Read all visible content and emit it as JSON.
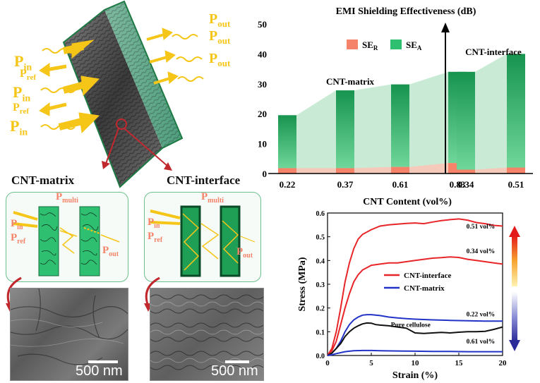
{
  "schematic": {
    "wave_labels": {
      "p_in": "P",
      "p_in_sub": "in",
      "p_ref": "P",
      "p_ref_sub": "ref",
      "p_out": "P",
      "p_out_sub": "out"
    },
    "label_matrix": "CNT-matrix",
    "label_interface": "CNT-interface"
  },
  "panels": {
    "matrix": {
      "p_multi": "P",
      "p_multi_sub": "multi",
      "p_in": "P",
      "p_in_sub": "in",
      "p_ref": "P",
      "p_ref_sub": "ref",
      "p_out": "P",
      "p_out_sub": "out"
    },
    "interface": {
      "p_multi": "P",
      "p_multi_sub": "multi",
      "p_in": "P",
      "p_in_sub": "in",
      "p_ref": "P",
      "p_ref_sub": "ref",
      "p_out": "P",
      "p_out_sub": "out"
    }
  },
  "sem": {
    "matrix_scale": "500 nm",
    "interface_scale": "500 nm"
  },
  "chart_data": [
    {
      "type": "bar",
      "title": "EMI Shielding Effectiveness (dB)",
      "xlabel": "CNT Content (vol%)",
      "ylim": [
        0,
        50
      ],
      "yticks": [
        0,
        10,
        20,
        30,
        40,
        50
      ],
      "legend": {
        "placement": "top",
        "entries": [
          {
            "name": "SE",
            "sub": "R",
            "color": "#f4836a"
          },
          {
            "name": "SE",
            "sub": "A",
            "color": "#2fbf71"
          }
        ]
      },
      "groups": [
        {
          "label": "CNT-matrix",
          "categories": [
            "0.22",
            "0.37",
            "0.61",
            "0.83"
          ],
          "se_total": [
            19.5,
            27.8,
            29.8,
            34.0
          ],
          "se_r": [
            1.8,
            1.8,
            2.2,
            3.5
          ]
        },
        {
          "label": "CNT-interface",
          "categories": [
            "0.34",
            "0.51"
          ],
          "se_total": [
            34.0,
            40.0
          ],
          "se_r": [
            1.3,
            2.0
          ]
        }
      ],
      "colors": {
        "se_r": "#f4836a",
        "se_a": "#2fbf71",
        "se_a_fill": "#bfe8cf",
        "se_r_fill": "#f9c7b8"
      }
    },
    {
      "type": "line",
      "xlabel": "Strain (%)",
      "ylabel": "Stress (MPa)",
      "xlim": [
        0,
        20
      ],
      "ylim": [
        0,
        0.6
      ],
      "xticks": [
        0,
        5,
        10,
        15,
        20
      ],
      "yticks": [
        0.0,
        0.1,
        0.2,
        0.3,
        0.4,
        0.5,
        0.6
      ],
      "legend": {
        "placement": "center",
        "entries": [
          {
            "name": "CNT-interface",
            "color": "#e8262a"
          },
          {
            "name": "CNT-matrix",
            "color": "#2233c8"
          }
        ]
      },
      "series": [
        {
          "name": "0.51 vol%",
          "color": "#e8262a",
          "x": [
            0,
            0.5,
            1,
            1.5,
            2,
            2.5,
            3,
            3.5,
            4,
            5,
            6,
            7,
            8,
            9,
            10,
            11,
            12,
            13,
            14,
            15,
            16,
            17,
            18,
            19,
            20
          ],
          "y": [
            0,
            0.03,
            0.1,
            0.2,
            0.31,
            0.39,
            0.45,
            0.49,
            0.51,
            0.53,
            0.545,
            0.55,
            0.553,
            0.556,
            0.558,
            0.555,
            0.562,
            0.568,
            0.572,
            0.575,
            0.57,
            0.56,
            0.555,
            0.548,
            0.545
          ]
        },
        {
          "name": "0.34 vol%",
          "color": "#e8262a",
          "x": [
            0,
            0.5,
            1,
            1.5,
            2,
            2.5,
            3,
            3.5,
            4,
            5,
            6,
            7,
            8,
            9,
            10,
            11,
            12,
            13,
            14,
            15,
            16,
            17,
            18,
            19,
            20
          ],
          "y": [
            0,
            0.02,
            0.06,
            0.13,
            0.2,
            0.26,
            0.31,
            0.34,
            0.36,
            0.38,
            0.385,
            0.39,
            0.39,
            0.395,
            0.4,
            0.405,
            0.41,
            0.412,
            0.415,
            0.413,
            0.405,
            0.4,
            0.395,
            0.39,
            0.385
          ]
        },
        {
          "name": "0.22 vol%",
          "color": "#2233c8",
          "x": [
            0,
            0.5,
            1,
            1.5,
            2,
            2.5,
            3,
            3.5,
            4,
            4.5,
            5,
            6,
            7,
            8,
            9,
            10,
            12,
            14,
            16,
            18,
            20
          ],
          "y": [
            0,
            0.01,
            0.03,
            0.06,
            0.1,
            0.13,
            0.15,
            0.162,
            0.17,
            0.172,
            0.172,
            0.168,
            0.162,
            0.158,
            0.155,
            0.153,
            0.15,
            0.148,
            0.146,
            0.145,
            0.145
          ]
        },
        {
          "name": "Pure cellulose",
          "color": "#111111",
          "x": [
            0,
            0.5,
            1,
            1.5,
            2,
            2.5,
            3,
            3.5,
            4,
            4.5,
            5,
            5.5,
            6,
            7,
            8,
            9,
            10,
            11,
            12,
            13,
            14,
            15,
            16,
            17,
            18,
            19,
            20
          ],
          "y": [
            0,
            0.01,
            0.03,
            0.05,
            0.08,
            0.1,
            0.115,
            0.125,
            0.133,
            0.137,
            0.136,
            0.13,
            0.128,
            0.125,
            0.12,
            0.115,
            0.095,
            0.093,
            0.095,
            0.097,
            0.095,
            0.098,
            0.1,
            0.1,
            0.102,
            0.11,
            0.12
          ]
        },
        {
          "name": "0.61 vol%",
          "color": "#2233c8",
          "x": [
            0,
            0.5,
            1,
            1.5,
            2,
            2.5,
            3,
            4,
            5,
            6,
            8,
            10,
            12,
            14,
            16,
            18,
            20
          ],
          "y": [
            0,
            0.003,
            0.008,
            0.012,
            0.016,
            0.018,
            0.02,
            0.021,
            0.021,
            0.02,
            0.019,
            0.018,
            0.017,
            0.017,
            0.016,
            0.016,
            0.016
          ]
        }
      ],
      "curve_labels": [
        {
          "text": "0.51 vol%",
          "x": 17.5,
          "y": 0.535
        },
        {
          "text": "0.34 vol%",
          "x": 17.5,
          "y": 0.43
        },
        {
          "text": "0.22 vol%",
          "x": 17.5,
          "y": 0.165
        },
        {
          "text": "Pure cellulose",
          "x": 9.5,
          "y": 0.12
        },
        {
          "text": "0.61 vol%",
          "x": 17.5,
          "y": 0.05
        }
      ]
    }
  ]
}
